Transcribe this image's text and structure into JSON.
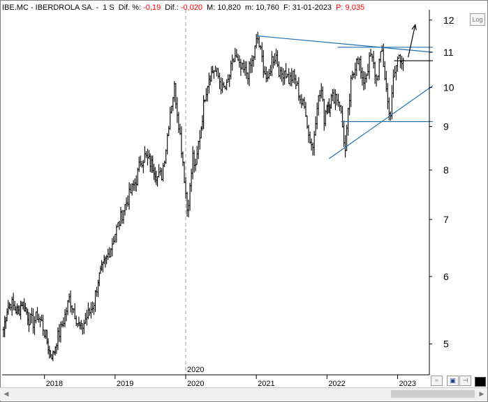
{
  "header": {
    "ticker": "IBE.MC - IBERDROLA SA. -",
    "period": "1 S",
    "dif_pct_label": "Dif. %:",
    "dif_pct_value": "-0,19",
    "dif_label": "Dif.:",
    "dif_value": "-0,020",
    "max_label": "M:",
    "max_value": "10,820",
    "min_label": "m:",
    "min_value": "10,760",
    "date_label": "F:",
    "date_value": "31-01-2023",
    "price_label": "P:",
    "price_value": "9,035"
  },
  "toolbar": {
    "log_label": "Log"
  },
  "colors": {
    "background": "#ffffff",
    "candles": "#000000",
    "trendlines": "#1f6fb0",
    "negative_text": "#ff0000",
    "axis": "#000000"
  },
  "chart_data": {
    "type": "line",
    "style": "weekly-ohlc",
    "scale": "log",
    "ylim": [
      4.6,
      12.2
    ],
    "y_ticks": [
      5,
      6,
      7,
      8,
      9,
      10,
      11,
      12
    ],
    "x_ticks": [
      "2018",
      "2019",
      "2020",
      "2021",
      "2022",
      "2023"
    ],
    "x_range": [
      2017.4,
      2023.45
    ],
    "year_marker": {
      "x": 2020.0,
      "label": "2020"
    },
    "series": [
      {
        "x": [
          2017.42,
          2017.47,
          2017.52,
          2017.58,
          2017.63,
          2017.68,
          2017.73,
          2017.78,
          2017.84,
          2017.9,
          2017.96,
          2018.02,
          2018.07,
          2018.12,
          2018.17,
          2018.23,
          2018.29,
          2018.35,
          2018.41,
          2018.47,
          2018.52,
          2018.58,
          2018.64,
          2018.7,
          2018.76,
          2018.81,
          2018.88,
          2018.94,
          2019.0,
          2019.06,
          2019.12,
          2019.18,
          2019.24,
          2019.3,
          2019.36,
          2019.42,
          2019.48,
          2019.55,
          2019.6,
          2019.66,
          2019.72,
          2019.78,
          2019.84,
          2019.9,
          2019.96,
          2020.02,
          2020.06,
          2020.1,
          2020.14,
          2020.18,
          2020.22,
          2020.27,
          2020.33,
          2020.4,
          2020.46,
          2020.52,
          2020.58,
          2020.64,
          2020.7,
          2020.76,
          2020.82,
          2020.88,
          2020.94,
          2021.0,
          2021.02,
          2021.06,
          2021.1,
          2021.16,
          2021.22,
          2021.28,
          2021.34,
          2021.4,
          2021.46,
          2021.52,
          2021.58,
          2021.64,
          2021.7,
          2021.74,
          2021.8,
          2021.86,
          2021.92,
          2021.96,
          2022.0,
          2022.03,
          2022.06,
          2022.12,
          2022.18,
          2022.22,
          2022.26,
          2022.3,
          2022.34,
          2022.38,
          2022.42,
          2022.46,
          2022.5,
          2022.56,
          2022.62,
          2022.66,
          2022.7,
          2022.74,
          2022.78,
          2022.82,
          2022.86,
          2022.9,
          2022.94,
          2022.98,
          2023.02,
          2023.06,
          2023.08
        ],
        "y": [
          5.2,
          5.5,
          5.6,
          5.5,
          5.45,
          5.6,
          5.5,
          5.35,
          5.3,
          5.4,
          5.3,
          5.1,
          4.9,
          4.85,
          5.05,
          5.2,
          5.4,
          5.65,
          5.5,
          5.3,
          5.2,
          5.35,
          5.45,
          5.6,
          5.95,
          6.1,
          6.3,
          6.5,
          6.75,
          6.95,
          7.2,
          7.4,
          7.6,
          7.8,
          8.2,
          8.3,
          8.2,
          8.05,
          7.85,
          7.9,
          8.5,
          9.4,
          10.0,
          9.1,
          8.2,
          7.2,
          7.6,
          8.3,
          8.0,
          8.6,
          9.0,
          9.8,
          10.3,
          10.5,
          10.3,
          9.95,
          10.0,
          10.5,
          10.9,
          10.55,
          10.45,
          10.4,
          10.7,
          11.3,
          11.4,
          11.0,
          10.6,
          10.1,
          10.8,
          10.9,
          10.3,
          10.5,
          10.2,
          10.3,
          10.0,
          9.6,
          9.4,
          8.8,
          8.5,
          9.6,
          9.9,
          9.2,
          9.6,
          9.5,
          9.7,
          9.8,
          9.6,
          9.0,
          8.4,
          9.3,
          10.1,
          10.4,
          10.9,
          10.7,
          10.1,
          10.4,
          10.9,
          10.6,
          10.2,
          10.7,
          11.0,
          10.3,
          9.6,
          9.3,
          10.2,
          10.6,
          10.95,
          10.8,
          10.76
        ]
      }
    ],
    "annotations": {
      "resistance_levels": [
        11.15,
        10.75
      ],
      "support_level": 9.12,
      "falling_trendline": [
        [
          2021.0,
          11.5
        ],
        [
          2023.45,
          11.0
        ]
      ],
      "rising_trendline": [
        [
          2022.03,
          8.25
        ],
        [
          2023.45,
          10.05
        ]
      ],
      "target_arrow": [
        [
          2023.15,
          10.85
        ],
        [
          2023.25,
          11.85
        ]
      ]
    }
  }
}
